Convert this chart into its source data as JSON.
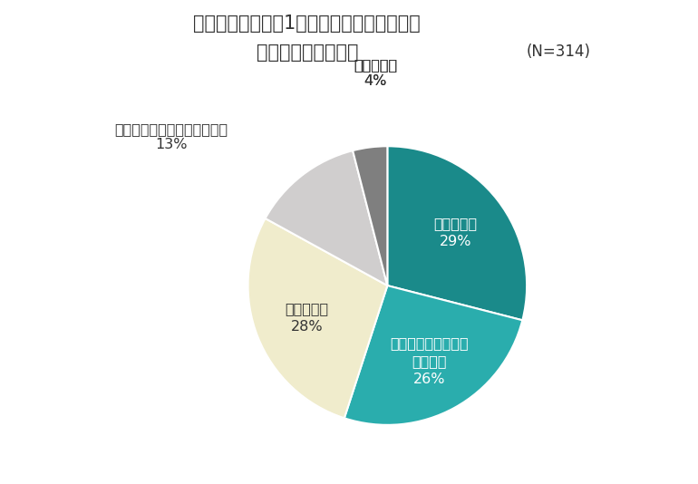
{
  "title_line1": "コロナ前と比べた1人あたりひと月にかける",
  "title_line2": "おでかけ予算の変化",
  "n_label": "(N=314)",
  "slices": [
    {
      "label": "増えている",
      "pct": 29,
      "color": "#1a8a8a",
      "inside": true,
      "text_color": "white"
    },
    {
      "label": "どちらかと言えば増\nえている",
      "pct": 26,
      "color": "#2aadad",
      "inside": true,
      "text_color": "white"
    },
    {
      "label": "変わらない",
      "pct": 28,
      "color": "#f0eccc",
      "inside": true,
      "text_color": "#333333"
    },
    {
      "label": "どちらかと言えば減っている",
      "pct": 13,
      "color": "#d0cece",
      "inside": false,
      "text_color": "#333333"
    },
    {
      "label": "減っている",
      "pct": 4,
      "color": "#7f7f7f",
      "inside": false,
      "text_color": "#333333"
    }
  ],
  "background_color": "#ffffff",
  "startangle": 90,
  "title_fontsize": 15,
  "label_fontsize": 11.5,
  "n_fontsize": 12
}
